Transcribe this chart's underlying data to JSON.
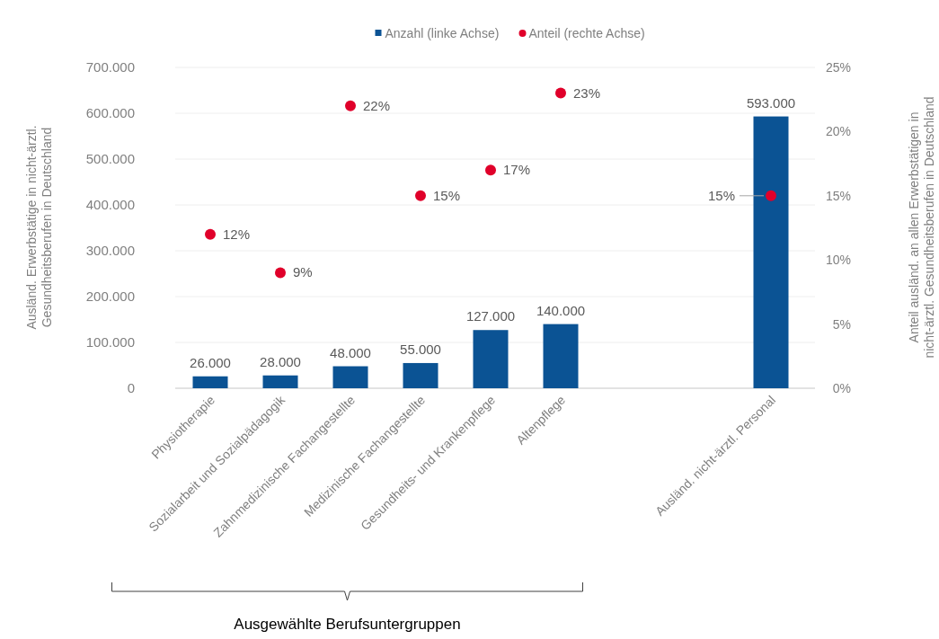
{
  "chart_data": {
    "type": "bar",
    "categories": [
      "Physiotherapie",
      "Sozialarbeit und Sozialpädagogik",
      "Zahnmedizinische Fachangestellte",
      "Medizinische Fachangestellte",
      "Gesundheits- und Krankenpflege",
      "Altenpflege",
      null,
      null,
      "Ausländ. nicht-ärztl. Personal"
    ],
    "series": [
      {
        "name": "Anzahl (linke Achse)",
        "color": "#0b5394",
        "values": [
          26000,
          28000,
          48000,
          55000,
          127000,
          140000,
          null,
          null,
          593000
        ],
        "value_labels": [
          "26.000",
          "28.000",
          "48.000",
          "55.000",
          "127.000",
          "140.000",
          null,
          null,
          "593.000"
        ]
      },
      {
        "name": "Anteil (rechte Achse)",
        "type": "scatter",
        "axis": "y2",
        "color": "#e0002a",
        "values": [
          12,
          9,
          22,
          15,
          17,
          23,
          null,
          null,
          15
        ],
        "value_labels": [
          "12%",
          "9%",
          "22%",
          "15%",
          "17%",
          "23%",
          null,
          null,
          "15%"
        ]
      }
    ],
    "ylabel": "Ausländ. Erwerbstätige in nicht-ärztl. Gesundheitsberufen in Deutschland",
    "y2label": "Anteil ausländ. an allen Erwerbstätigen in nicht-ärztl. Gesundheitsberufen in Deutschland",
    "ylim": [
      0,
      700000
    ],
    "yticks": [
      {
        "value": 0,
        "label": "0"
      },
      {
        "value": 100000,
        "label": "100.000"
      },
      {
        "value": 200000,
        "label": "200.000"
      },
      {
        "value": 300000,
        "label": "300.000"
      },
      {
        "value": 400000,
        "label": "400.000"
      },
      {
        "value": 500000,
        "label": "500.000"
      },
      {
        "value": 600000,
        "label": "600.000"
      },
      {
        "value": 700000,
        "label": "700.000"
      }
    ],
    "y2lim": [
      0,
      25
    ],
    "y2ticks": [
      {
        "value": 0,
        "label": "0%"
      },
      {
        "value": 5,
        "label": "5%"
      },
      {
        "value": 10,
        "label": "10%"
      },
      {
        "value": 15,
        "label": "15%"
      },
      {
        "value": 20,
        "label": "20%"
      },
      {
        "value": 25,
        "label": "25%"
      }
    ],
    "grid": "y",
    "legend": "top",
    "marker": "circle",
    "annotations": [
      "Ausgewählte Berufsuntergruppen"
    ]
  }
}
